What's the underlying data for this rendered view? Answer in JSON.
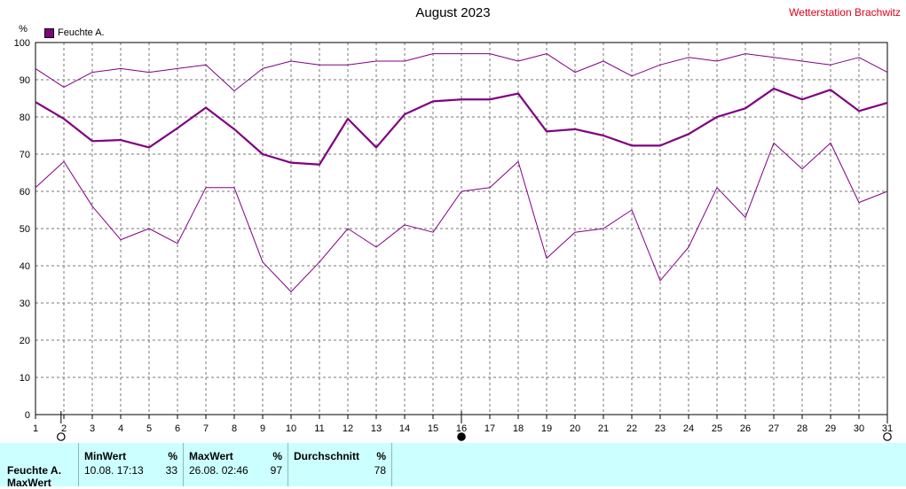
{
  "header": {
    "title": "August 2023",
    "station": "Wetterstation Brachwitz"
  },
  "legend": {
    "label": "Feuchte A."
  },
  "chart_data": {
    "type": "line",
    "title": "August 2023",
    "ylabel": "%",
    "xlabel": "",
    "ylim": [
      0,
      100
    ],
    "yticks": [
      0,
      10,
      20,
      30,
      40,
      50,
      60,
      70,
      80,
      90,
      100
    ],
    "grid": true,
    "legend_position": "top-left",
    "x": [
      1,
      2,
      3,
      4,
      5,
      6,
      7,
      8,
      9,
      10,
      11,
      12,
      13,
      14,
      15,
      16,
      17,
      18,
      19,
      20,
      21,
      22,
      23,
      24,
      25,
      26,
      27,
      28,
      29,
      30,
      31
    ],
    "series": [
      {
        "name": "Feuchte A.",
        "role": "max",
        "color": "#800080",
        "values": [
          93,
          88,
          92,
          93,
          92,
          93,
          94,
          87,
          93,
          95,
          94,
          94,
          95,
          95,
          97,
          97,
          97,
          95,
          97,
          92,
          95,
          91,
          94,
          96,
          95,
          97,
          96,
          95,
          94,
          96,
          92
        ]
      },
      {
        "name": "Feuchte A.",
        "role": "average",
        "color": "#800080",
        "values": [
          84,
          79.5,
          73.5,
          73.8,
          71.8,
          77,
          82.5,
          76.7,
          70,
          67.7,
          67.2,
          79.5,
          71.8,
          80.7,
          84.2,
          84.7,
          84.7,
          86.3,
          76.1,
          76.7,
          75,
          72.3,
          72.3,
          75.4,
          80,
          82.3,
          87.6,
          84.7,
          87.3,
          81.6,
          83.8
        ]
      },
      {
        "name": "Feuchte A.",
        "role": "min",
        "color": "#800080",
        "values": [
          61,
          68,
          56,
          47,
          50,
          46,
          61,
          61,
          41,
          33,
          41,
          50,
          45,
          51,
          49,
          60,
          61,
          68,
          42,
          49,
          50,
          55,
          36,
          45,
          61,
          53,
          73,
          66,
          73,
          57,
          60
        ]
      }
    ],
    "markers": [
      {
        "day": 1.9,
        "symbol": "open-circle"
      },
      {
        "day": 16,
        "symbol": "filled-circle"
      },
      {
        "day": 31,
        "symbol": "open-circle"
      }
    ]
  },
  "stats": {
    "row_label": "Feuchte A.",
    "row_label2": "MaxWert",
    "min": {
      "label": "MinWert",
      "unit": "%",
      "time": "10.08.  17:13",
      "value": "33"
    },
    "max": {
      "label": "MaxWert",
      "unit": "%",
      "time": "26.08.  02:46",
      "value": "97"
    },
    "avg": {
      "label": "Durchschnitt",
      "unit": "%",
      "value": "78"
    }
  }
}
